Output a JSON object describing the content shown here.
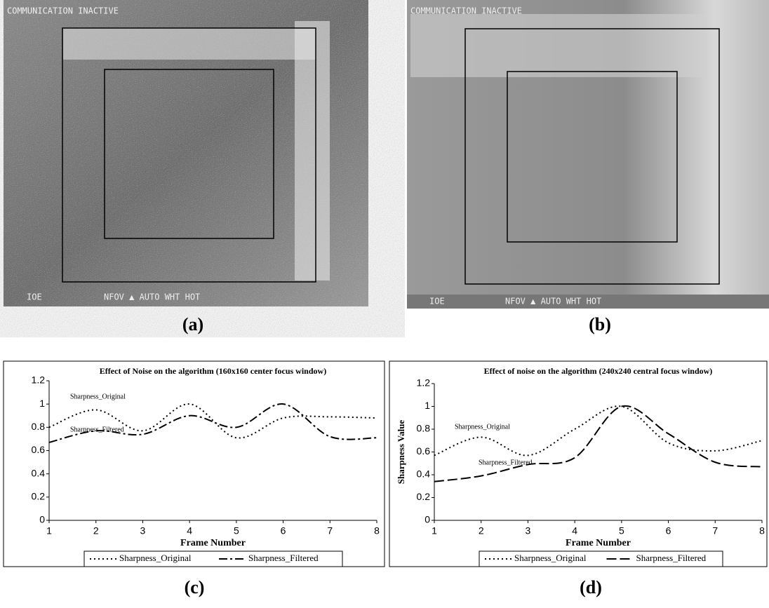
{
  "panels": [
    {
      "label": "(a)",
      "overlay_top": "COMMUNICATION INACTIVE",
      "overlay_left": "IOE",
      "overlay_bottom": "NFOV ▲ AUTO WHT HOT"
    },
    {
      "label": "(b)",
      "overlay_top": "COMMUNICATION INACTIVE",
      "overlay_left": "IOE",
      "overlay_bottom": "NFOV ▲ AUTO WHT HOT"
    }
  ],
  "chart_data": [
    {
      "type": "line",
      "label": "(c)",
      "title": "Effect of Noise on the algorithm (160x160 center focus window)",
      "x_label": "Frame Number",
      "x": [
        1,
        2,
        3,
        4,
        5,
        6,
        7,
        8
      ],
      "xlim": [
        1,
        8
      ],
      "xticks": [
        1,
        2,
        3,
        4,
        5,
        6,
        7,
        8
      ],
      "ylim": [
        0,
        1.2
      ],
      "yticks": [
        0,
        0.2,
        0.4,
        0.6,
        0.8,
        1,
        1.2
      ],
      "legend": "bottom",
      "annotations": [
        "Sharpness_Original",
        "Sharpness_Filtered"
      ],
      "series": [
        {
          "name": "Sharpness_Original",
          "color": "#000000",
          "dash": "dotted",
          "values": [
            0.8,
            0.95,
            0.77,
            1.0,
            0.71,
            0.88,
            0.89,
            0.88
          ]
        },
        {
          "name": "Sharpness_Filtered",
          "color": "#000000",
          "dash": "dash-dot",
          "values": [
            0.67,
            0.77,
            0.74,
            0.9,
            0.8,
            1.0,
            0.72,
            0.71
          ]
        }
      ]
    },
    {
      "type": "line",
      "label": "(d)",
      "title": "Effect of noise on the algorithm (240x240 central focus window)",
      "x_label": "Frame Number",
      "y_label": "Sharpness Value",
      "x": [
        1,
        2,
        3,
        4,
        5,
        6,
        7,
        8
      ],
      "xlim": [
        1,
        8
      ],
      "xticks": [
        1,
        2,
        3,
        4,
        5,
        6,
        7,
        8
      ],
      "ylim": [
        0,
        1.2
      ],
      "yticks": [
        0,
        0.2,
        0.4,
        0.6,
        0.8,
        1,
        1.2
      ],
      "legend": "bottom",
      "annotations": [
        "Sharpness_Original",
        "Sharpness_Filtered"
      ],
      "series": [
        {
          "name": "Sharpness_Original",
          "color": "#000000",
          "dash": "dotted",
          "values": [
            0.57,
            0.73,
            0.57,
            0.8,
            1.0,
            0.68,
            0.61,
            0.7
          ]
        },
        {
          "name": "Sharpness_Filtered",
          "color": "#000000",
          "dash": "dashed",
          "values": [
            0.34,
            0.39,
            0.49,
            0.55,
            1.0,
            0.76,
            0.51,
            0.47
          ]
        }
      ]
    }
  ]
}
